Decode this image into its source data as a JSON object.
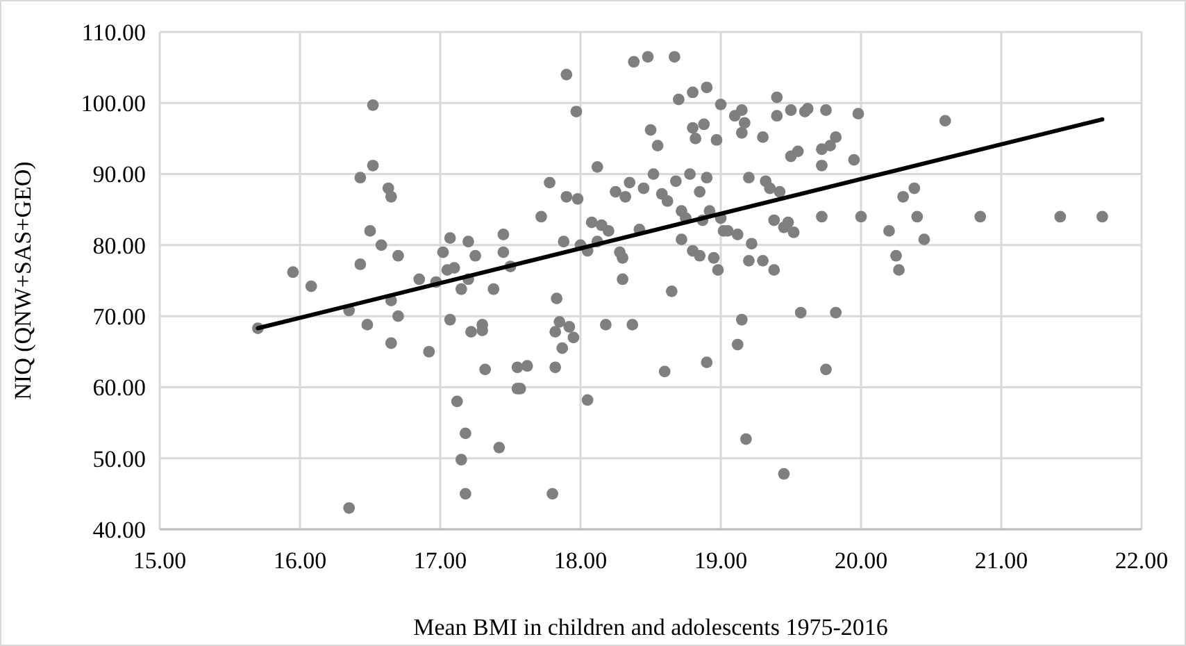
{
  "chart_data": {
    "type": "scatter",
    "xlabel": "Mean BMI in children and adolescents 1975-2016",
    "ylabel": "NIQ (QNW+SAS+GEO)",
    "xlim": [
      15,
      22
    ],
    "ylim": [
      40,
      110
    ],
    "xticks": [
      {
        "value": 15,
        "label": "15.00"
      },
      {
        "value": 16,
        "label": "16.00"
      },
      {
        "value": 17,
        "label": "17.00"
      },
      {
        "value": 18,
        "label": "18.00"
      },
      {
        "value": 19,
        "label": "19.00"
      },
      {
        "value": 20,
        "label": "20.00"
      },
      {
        "value": 21,
        "label": "21.00"
      },
      {
        "value": 22,
        "label": "22.00"
      }
    ],
    "yticks": [
      {
        "value": 40,
        "label": "40.00"
      },
      {
        "value": 50,
        "label": "50.00"
      },
      {
        "value": 60,
        "label": "60.00"
      },
      {
        "value": 70,
        "label": "70.00"
      },
      {
        "value": 80,
        "label": "80.00"
      },
      {
        "value": 90,
        "label": "90.00"
      },
      {
        "value": 100,
        "label": "100.00"
      },
      {
        "value": 110,
        "label": "110.00"
      }
    ],
    "grid": true,
    "series": [
      {
        "color": "#7f7f7f",
        "marker": "circle",
        "x": [
          15.7,
          15.95,
          16.08,
          16.35,
          16.35,
          16.43,
          16.43,
          16.48,
          16.5,
          16.52,
          16.52,
          16.58,
          16.63,
          16.65,
          16.65,
          16.65,
          16.7,
          16.7,
          16.85,
          16.92,
          16.97,
          17.02,
          17.05,
          17.07,
          17.07,
          17.1,
          17.12,
          17.15,
          17.15,
          17.18,
          17.18,
          17.2,
          17.2,
          17.22,
          17.25,
          17.3,
          17.3,
          17.32,
          17.38,
          17.42,
          17.45,
          17.45,
          17.5,
          17.55,
          17.55,
          17.57,
          17.62,
          17.72,
          17.78,
          17.8,
          17.82,
          17.82,
          17.83,
          17.85,
          17.87,
          17.88,
          17.9,
          17.9,
          17.92,
          17.95,
          17.97,
          17.98,
          18.0,
          18.05,
          18.05,
          18.08,
          18.12,
          18.12,
          18.15,
          18.18,
          18.2,
          18.25,
          18.28,
          18.3,
          18.3,
          18.32,
          18.35,
          18.37,
          18.38,
          18.42,
          18.45,
          18.48,
          18.5,
          18.52,
          18.55,
          18.58,
          18.6,
          18.62,
          18.65,
          18.67,
          18.68,
          18.7,
          18.72,
          18.72,
          18.75,
          18.78,
          18.8,
          18.8,
          18.8,
          18.82,
          18.85,
          18.85,
          18.87,
          18.88,
          18.9,
          18.9,
          18.9,
          18.92,
          18.95,
          18.97,
          18.98,
          19.0,
          19.0,
          19.02,
          19.05,
          19.1,
          19.12,
          19.12,
          19.15,
          19.15,
          19.15,
          19.17,
          19.18,
          19.2,
          19.2,
          19.22,
          19.3,
          19.3,
          19.32,
          19.35,
          19.38,
          19.38,
          19.4,
          19.4,
          19.42,
          19.45,
          19.45,
          19.48,
          19.5,
          19.5,
          19.52,
          19.55,
          19.57,
          19.6,
          19.62,
          19.72,
          19.72,
          19.72,
          19.75,
          19.75,
          19.78,
          19.82,
          19.82,
          19.95,
          19.98,
          20.0,
          20.2,
          20.25,
          20.3,
          20.27,
          20.38,
          20.4,
          20.45,
          20.6,
          20.85,
          21.42,
          21.72
        ],
        "values": [
          68.3,
          76.2,
          74.2,
          70.8,
          43,
          77.3,
          89.5,
          68.8,
          82,
          91.2,
          99.7,
          80,
          88,
          86.8,
          72.2,
          66.2,
          78.5,
          70,
          75.2,
          65,
          74.8,
          79,
          76.5,
          81,
          69.5,
          76.8,
          58,
          73.8,
          49.8,
          53.5,
          45,
          80.5,
          75.2,
          67.8,
          78.5,
          68.8,
          68,
          62.5,
          73.8,
          51.5,
          79,
          81.5,
          77,
          62.8,
          59.8,
          59.8,
          63,
          84,
          88.8,
          45,
          62.8,
          67.8,
          72.5,
          69.2,
          65.5,
          80.5,
          86.8,
          104,
          68.5,
          67,
          98.8,
          86.5,
          80,
          58.2,
          79.2,
          83.2,
          91,
          80.5,
          82.8,
          68.8,
          82,
          87.5,
          79,
          78.2,
          75.2,
          86.8,
          88.8,
          68.8,
          105.8,
          82.2,
          88,
          106.5,
          96.2,
          90,
          94,
          87.2,
          62.2,
          86.2,
          73.5,
          106.5,
          89,
          100.5,
          84.8,
          80.8,
          83.8,
          90,
          96.5,
          101.5,
          79.2,
          95,
          87.5,
          78.5,
          83.5,
          97,
          102.2,
          89.5,
          63.5,
          84.8,
          78.2,
          94.8,
          76.5,
          99.8,
          83.8,
          82,
          82,
          98.2,
          81.5,
          66,
          99,
          95.8,
          69.5,
          97.2,
          52.7,
          89.5,
          77.8,
          80.2,
          77.8,
          95.2,
          89,
          88,
          76.5,
          83.5,
          98.2,
          100.8,
          87.5,
          82.5,
          47.8,
          83.2,
          92.5,
          99,
          81.8,
          93.2,
          70.5,
          98.8,
          99.2,
          91.2,
          93.5,
          84,
          62.5,
          99,
          94,
          70.5,
          95.2,
          92,
          98.5,
          84,
          82,
          78.5,
          86.8,
          76.5,
          88,
          84,
          80.8,
          97.5,
          84,
          84,
          84
        ]
      },
      {
        "type": "line",
        "color": "#000000",
        "marker": "none",
        "line_style": "solid",
        "x": [
          15.7,
          21.72
        ],
        "values": [
          68.3,
          97.7
        ]
      }
    ]
  }
}
